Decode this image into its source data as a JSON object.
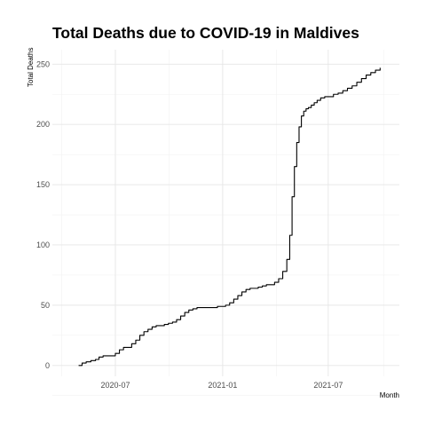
{
  "chart_data": {
    "type": "line",
    "title": "Total Deaths due to COVID-19 in Maldives",
    "xlabel": "Month",
    "ylabel": "Total Deaths",
    "x_ticks": [
      {
        "date": "2020-07-01",
        "label": "2020-07"
      },
      {
        "date": "2021-01-01",
        "label": "2021-01"
      },
      {
        "date": "2021-07-01",
        "label": "2021-07"
      }
    ],
    "y_ticks": [
      0,
      50,
      100,
      150,
      200,
      250
    ],
    "xlim": [
      "2020-03-15",
      "2021-10-31"
    ],
    "ylim": [
      -9,
      262
    ],
    "grid": true,
    "series": [
      {
        "color": "#000000",
        "x": [
          "2020-04-29",
          "2020-05-05",
          "2020-05-12",
          "2020-05-20",
          "2020-05-28",
          "2020-06-03",
          "2020-06-10",
          "2020-06-18",
          "2020-06-24",
          "2020-07-01",
          "2020-07-08",
          "2020-07-15",
          "2020-07-22",
          "2020-07-29",
          "2020-08-05",
          "2020-08-12",
          "2020-08-19",
          "2020-08-26",
          "2020-09-02",
          "2020-09-09",
          "2020-09-16",
          "2020-09-23",
          "2020-09-30",
          "2020-10-07",
          "2020-10-14",
          "2020-10-21",
          "2020-10-28",
          "2020-11-04",
          "2020-11-11",
          "2020-11-18",
          "2020-11-25",
          "2020-12-02",
          "2020-12-09",
          "2020-12-16",
          "2020-12-23",
          "2020-12-30",
          "2021-01-06",
          "2021-01-13",
          "2021-01-20",
          "2021-01-27",
          "2021-02-03",
          "2021-02-10",
          "2021-02-17",
          "2021-02-24",
          "2021-03-03",
          "2021-03-10",
          "2021-03-17",
          "2021-03-24",
          "2021-03-31",
          "2021-04-07",
          "2021-04-14",
          "2021-04-21",
          "2021-04-26",
          "2021-04-30",
          "2021-05-04",
          "2021-05-08",
          "2021-05-12",
          "2021-05-16",
          "2021-05-20",
          "2021-05-24",
          "2021-05-28",
          "2021-06-02",
          "2021-06-07",
          "2021-06-12",
          "2021-06-18",
          "2021-06-25",
          "2021-07-02",
          "2021-07-10",
          "2021-07-18",
          "2021-07-26",
          "2021-08-03",
          "2021-08-11",
          "2021-08-19",
          "2021-08-27",
          "2021-09-04",
          "2021-09-12",
          "2021-09-20",
          "2021-09-28"
        ],
        "values": [
          0,
          2,
          3,
          4,
          5,
          7,
          8,
          8,
          8,
          10,
          13,
          15,
          15,
          18,
          21,
          25,
          28,
          30,
          32,
          33,
          33,
          34,
          35,
          36,
          38,
          41,
          44,
          46,
          47,
          48,
          48,
          48,
          48,
          48,
          49,
          49,
          50,
          52,
          55,
          58,
          61,
          63,
          64,
          64,
          65,
          66,
          67,
          67,
          69,
          72,
          78,
          88,
          108,
          140,
          165,
          185,
          198,
          207,
          211,
          213,
          214,
          216,
          218,
          220,
          222,
          223,
          223,
          225,
          226,
          228,
          230,
          232,
          235,
          238,
          241,
          243,
          245,
          247
        ]
      }
    ]
  }
}
